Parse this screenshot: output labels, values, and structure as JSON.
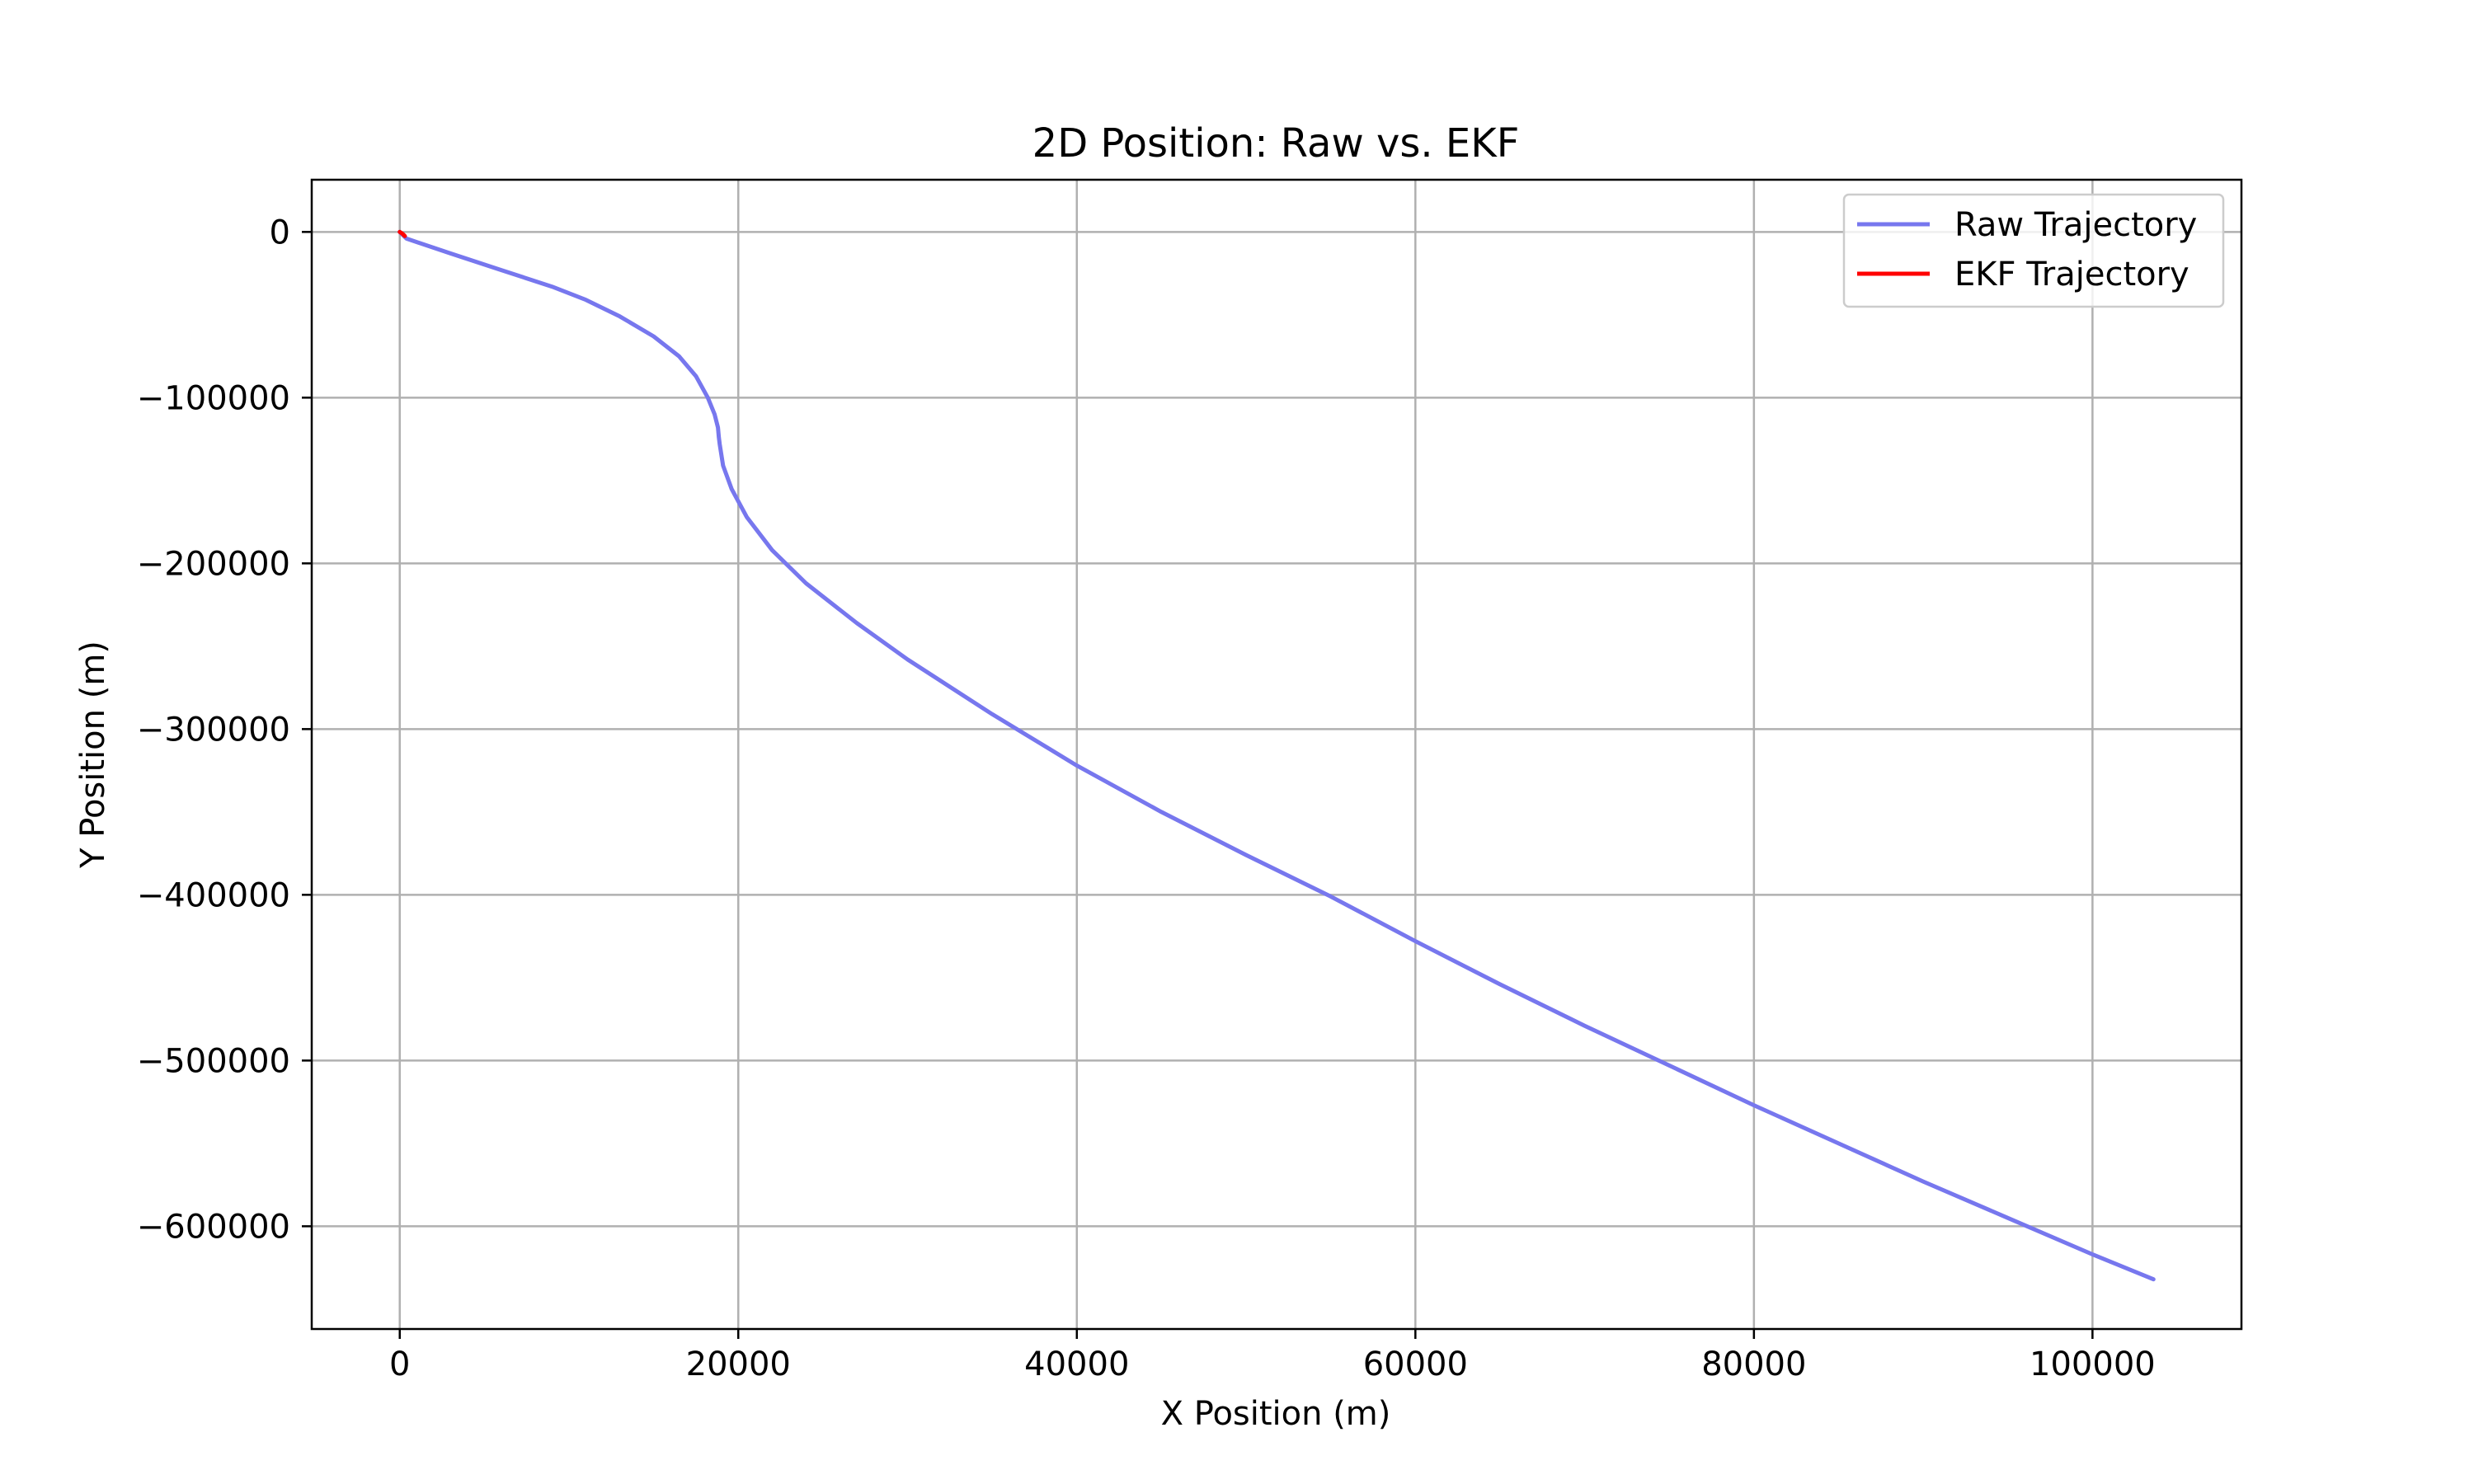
{
  "chart_data": {
    "type": "line",
    "title": "2D Position: Raw vs. EKF",
    "xlabel": "X Position (m)",
    "ylabel": "Y Position (m)",
    "xlim": [
      -5200,
      108800
    ],
    "ylim": [
      -662000,
      31500
    ],
    "xticks": [
      0,
      20000,
      40000,
      60000,
      80000,
      100000
    ],
    "xtick_labels": [
      "0",
      "20000",
      "40000",
      "60000",
      "80000",
      "100000"
    ],
    "yticks": [
      0,
      -100000,
      -200000,
      -300000,
      -400000,
      -500000,
      -600000
    ],
    "ytick_labels": [
      "0",
      "−100000",
      "−200000",
      "−300000",
      "−400000",
      "−500000",
      "−600000"
    ],
    "grid": true,
    "legend_position": "upper right",
    "series": [
      {
        "name": "Raw Trajectory",
        "color": "#7777ee",
        "x": [
          0,
          400,
          3000,
          6000,
          9000,
          11000,
          13000,
          15000,
          16500,
          17500,
          18200,
          18600,
          18800,
          18850,
          18900,
          19100,
          19600,
          20500,
          22000,
          24000,
          27000,
          30000,
          35000,
          40000,
          45000,
          50000,
          55000,
          60000,
          65000,
          70000,
          75000,
          80000,
          85000,
          90000,
          95000,
          100000,
          103600
        ],
        "y": [
          0,
          -4000,
          -13000,
          -23000,
          -33000,
          -41000,
          -51000,
          -63000,
          -75000,
          -87000,
          -100000,
          -110000,
          -118000,
          -124000,
          -128000,
          -141000,
          -155000,
          -172000,
          -192000,
          -212000,
          -236000,
          -258000,
          -291000,
          -322000,
          -350000,
          -376000,
          -401000,
          -428000,
          -454000,
          -479000,
          -503000,
          -527000,
          -550000,
          -573000,
          -595000,
          -617000,
          -632000
        ]
      },
      {
        "name": "EKF Trajectory",
        "color": "#ff0000",
        "x": [
          0,
          150,
          300
        ],
        "y": [
          0,
          -1000,
          -2500
        ]
      }
    ]
  }
}
